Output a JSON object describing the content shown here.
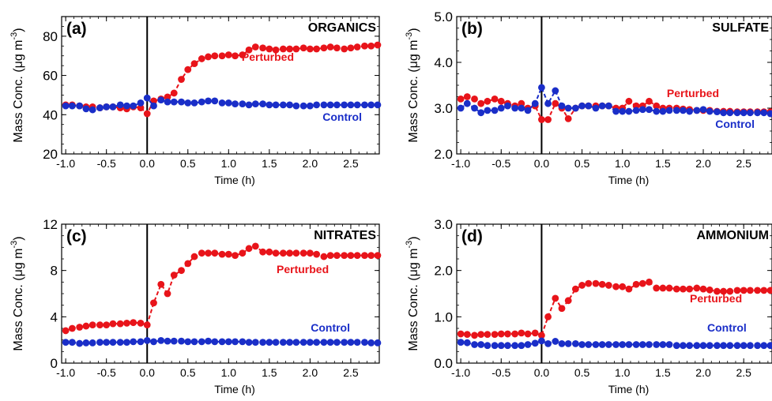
{
  "chart_data": [
    {
      "type": "scatter",
      "panel_label": "(a)",
      "title": "ORGANICS",
      "xlabel": "Time (h)",
      "ylabel": "Mass Conc. (μg m",
      "ylabel_exp": "-3",
      "ylabel_close": ")",
      "xlim": [
        -1.05,
        2.85
      ],
      "ylim": [
        20,
        90
      ],
      "xticks": [
        -1.0,
        -0.5,
        0.0,
        0.5,
        1.0,
        1.5,
        2.0,
        2.5
      ],
      "xtick_labels": [
        "-1.0",
        "-0.5",
        "0.0",
        "0.5",
        "1.0",
        "1.5",
        "2.0",
        "2.5"
      ],
      "yticks": [
        20,
        40,
        60,
        80
      ],
      "ytick_labels": [
        "20",
        "40",
        "60",
        "80"
      ],
      "event_line_x": 0.0,
      "series": [
        {
          "name": "Perturbed",
          "color": "#e8141a",
          "x": [
            -1.0,
            -0.92,
            -0.83,
            -0.75,
            -0.67,
            -0.58,
            -0.5,
            -0.42,
            -0.33,
            -0.25,
            -0.17,
            -0.08,
            0.0,
            0.08,
            0.17,
            0.25,
            0.33,
            0.42,
            0.5,
            0.58,
            0.67,
            0.75,
            0.83,
            0.92,
            1.0,
            1.08,
            1.17,
            1.25,
            1.33,
            1.42,
            1.5,
            1.58,
            1.67,
            1.75,
            1.83,
            1.92,
            2.0,
            2.08,
            2.17,
            2.25,
            2.33,
            2.42,
            2.5,
            2.58,
            2.67,
            2.75,
            2.83
          ],
          "y": [
            45,
            45,
            44.5,
            44,
            44,
            43.5,
            44,
            44,
            43.5,
            43,
            44,
            43.5,
            40.5,
            47,
            48,
            49,
            51,
            58,
            63,
            66,
            68.5,
            69.5,
            70,
            70,
            70.5,
            70,
            70.5,
            73,
            74.5,
            74,
            73.5,
            73,
            73.5,
            73.5,
            73.5,
            74,
            73.5,
            73.5,
            74,
            74.5,
            74,
            73.5,
            74,
            74.5,
            75,
            75,
            75.5
          ]
        },
        {
          "name": "Control",
          "color": "#1a2ec8",
          "x": [
            -1.0,
            -0.92,
            -0.83,
            -0.75,
            -0.67,
            -0.58,
            -0.5,
            -0.42,
            -0.33,
            -0.25,
            -0.17,
            -0.08,
            0.0,
            0.08,
            0.17,
            0.25,
            0.33,
            0.42,
            0.5,
            0.58,
            0.67,
            0.75,
            0.83,
            0.92,
            1.0,
            1.08,
            1.17,
            1.25,
            1.33,
            1.42,
            1.5,
            1.58,
            1.67,
            1.75,
            1.83,
            1.92,
            2.0,
            2.08,
            2.17,
            2.25,
            2.33,
            2.42,
            2.5,
            2.58,
            2.67,
            2.75,
            2.83
          ],
          "y": [
            44.5,
            44.5,
            44.5,
            43,
            42.5,
            43.5,
            44,
            44,
            45,
            44.5,
            44.5,
            46,
            48.5,
            44.5,
            47.5,
            46.5,
            46.5,
            46.5,
            46,
            46,
            46.5,
            47,
            47,
            46,
            46,
            45.5,
            45.5,
            45,
            45.5,
            45.5,
            45,
            45,
            45,
            45,
            44.5,
            44.5,
            44.5,
            45,
            45,
            45,
            45,
            45,
            45,
            45,
            45,
            45,
            45
          ]
        }
      ],
      "series_labels": [
        "Perturbed",
        "Control"
      ]
    },
    {
      "type": "scatter",
      "panel_label": "(b)",
      "title": "SULFATE",
      "xlabel": "Time (h)",
      "ylabel": "Mass Conc. (μg m",
      "ylabel_exp": "-3",
      "ylabel_close": ")",
      "xlim": [
        -1.05,
        2.85
      ],
      "ylim": [
        2.0,
        5.0
      ],
      "xticks": [
        -1.0,
        -0.5,
        0.0,
        0.5,
        1.0,
        1.5,
        2.0,
        2.5
      ],
      "xtick_labels": [
        "-1.0",
        "-0.5",
        "0.0",
        "0.5",
        "1.0",
        "1.5",
        "2.0",
        "2.5"
      ],
      "yticks": [
        2.0,
        3.0,
        4.0,
        5.0
      ],
      "ytick_labels": [
        "2.0",
        "3.0",
        "4.0",
        "5.0"
      ],
      "event_line_x": 0.0,
      "series": [
        {
          "name": "Perturbed",
          "color": "#e8141a",
          "x": [
            -1.0,
            -0.92,
            -0.83,
            -0.75,
            -0.67,
            -0.58,
            -0.5,
            -0.42,
            -0.33,
            -0.25,
            -0.17,
            -0.08,
            0.0,
            0.08,
            0.17,
            0.25,
            0.33,
            0.42,
            0.5,
            0.58,
            0.67,
            0.75,
            0.83,
            0.92,
            1.0,
            1.08,
            1.17,
            1.25,
            1.33,
            1.42,
            1.5,
            1.58,
            1.67,
            1.75,
            1.83,
            1.92,
            2.0,
            2.08,
            2.17,
            2.25,
            2.33,
            2.42,
            2.5,
            2.58,
            2.67,
            2.75,
            2.83
          ],
          "y": [
            3.2,
            3.25,
            3.2,
            3.1,
            3.15,
            3.2,
            3.15,
            3.1,
            3.05,
            3.1,
            3.0,
            3.05,
            2.75,
            2.75,
            3.1,
            3.0,
            2.77,
            3.0,
            3.05,
            3.05,
            3.05,
            3.05,
            3.05,
            3.0,
            3.0,
            3.15,
            3.05,
            3.05,
            3.15,
            3.05,
            3.0,
            3.0,
            3.0,
            2.98,
            2.97,
            2.95,
            2.95,
            2.95,
            2.93,
            2.93,
            2.93,
            2.92,
            2.92,
            2.92,
            2.92,
            2.92,
            2.92
          ]
        },
        {
          "name": "Control",
          "color": "#1a2ec8",
          "x": [
            -1.0,
            -0.92,
            -0.83,
            -0.75,
            -0.67,
            -0.58,
            -0.5,
            -0.42,
            -0.33,
            -0.25,
            -0.17,
            -0.08,
            0.0,
            0.08,
            0.17,
            0.25,
            0.33,
            0.42,
            0.5,
            0.58,
            0.67,
            0.75,
            0.83,
            0.92,
            1.0,
            1.08,
            1.17,
            1.25,
            1.33,
            1.42,
            1.5,
            1.58,
            1.67,
            1.75,
            1.83,
            1.92,
            2.0,
            2.08,
            2.17,
            2.25,
            2.33,
            2.42,
            2.5,
            2.58,
            2.67,
            2.75,
            2.83
          ],
          "y": [
            3.0,
            3.1,
            3.0,
            2.9,
            2.95,
            2.95,
            3.0,
            3.05,
            3.0,
            3.0,
            2.95,
            3.1,
            3.45,
            3.1,
            3.38,
            3.05,
            3.0,
            3.0,
            3.05,
            3.05,
            3.0,
            3.05,
            3.05,
            2.93,
            2.93,
            2.93,
            2.95,
            2.97,
            2.97,
            2.93,
            2.93,
            2.95,
            2.95,
            2.95,
            2.93,
            2.95,
            2.97,
            2.93,
            2.92,
            2.9,
            2.9,
            2.9,
            2.9,
            2.9,
            2.9,
            2.9,
            2.88
          ]
        }
      ],
      "series_labels": [
        "Perturbed",
        "Control"
      ]
    },
    {
      "type": "scatter",
      "panel_label": "(c)",
      "title": "NITRATES",
      "xlabel": "Time (h)",
      "ylabel": "Mass Conc. (μg m",
      "ylabel_exp": "-3",
      "ylabel_close": ")",
      "xlim": [
        -1.05,
        2.85
      ],
      "ylim": [
        0,
        12
      ],
      "xticks": [
        -1.0,
        -0.5,
        0.0,
        0.5,
        1.0,
        1.5,
        2.0,
        2.5
      ],
      "xtick_labels": [
        "-1.0",
        "-0.5",
        "0.0",
        "0.5",
        "1.0",
        "1.5",
        "2.0",
        "2.5"
      ],
      "yticks": [
        0,
        4,
        8,
        12
      ],
      "ytick_labels": [
        "0",
        "4",
        "8",
        "12"
      ],
      "event_line_x": 0.0,
      "series": [
        {
          "name": "Perturbed",
          "color": "#e8141a",
          "x": [
            -1.0,
            -0.92,
            -0.83,
            -0.75,
            -0.67,
            -0.58,
            -0.5,
            -0.42,
            -0.33,
            -0.25,
            -0.17,
            -0.08,
            0.0,
            0.08,
            0.17,
            0.25,
            0.33,
            0.42,
            0.5,
            0.58,
            0.67,
            0.75,
            0.83,
            0.92,
            1.0,
            1.08,
            1.17,
            1.25,
            1.33,
            1.42,
            1.5,
            1.58,
            1.67,
            1.75,
            1.83,
            1.92,
            2.0,
            2.08,
            2.17,
            2.25,
            2.33,
            2.42,
            2.5,
            2.58,
            2.67,
            2.75,
            2.83
          ],
          "y": [
            2.8,
            3.0,
            3.1,
            3.2,
            3.3,
            3.3,
            3.3,
            3.4,
            3.4,
            3.45,
            3.5,
            3.45,
            3.3,
            5.2,
            6.8,
            6.0,
            7.6,
            8.0,
            8.6,
            9.2,
            9.5,
            9.5,
            9.5,
            9.4,
            9.4,
            9.3,
            9.5,
            9.9,
            10.1,
            9.6,
            9.6,
            9.5,
            9.5,
            9.5,
            9.5,
            9.5,
            9.5,
            9.4,
            9.2,
            9.3,
            9.3,
            9.3,
            9.3,
            9.3,
            9.3,
            9.3,
            9.3
          ]
        },
        {
          "name": "Control",
          "color": "#1a2ec8",
          "x": [
            -1.0,
            -0.92,
            -0.83,
            -0.75,
            -0.67,
            -0.58,
            -0.5,
            -0.42,
            -0.33,
            -0.25,
            -0.17,
            -0.08,
            0.0,
            0.08,
            0.17,
            0.25,
            0.33,
            0.42,
            0.5,
            0.58,
            0.67,
            0.75,
            0.83,
            0.92,
            1.0,
            1.08,
            1.17,
            1.25,
            1.33,
            1.42,
            1.5,
            1.58,
            1.67,
            1.75,
            1.83,
            1.92,
            2.0,
            2.08,
            2.17,
            2.25,
            2.33,
            2.42,
            2.5,
            2.58,
            2.67,
            2.75,
            2.83
          ],
          "y": [
            1.8,
            1.8,
            1.7,
            1.75,
            1.75,
            1.8,
            1.8,
            1.8,
            1.8,
            1.8,
            1.85,
            1.85,
            1.95,
            1.85,
            1.95,
            1.9,
            1.9,
            1.9,
            1.85,
            1.85,
            1.85,
            1.9,
            1.85,
            1.85,
            1.85,
            1.85,
            1.85,
            1.8,
            1.8,
            1.8,
            1.8,
            1.8,
            1.8,
            1.8,
            1.8,
            1.8,
            1.8,
            1.8,
            1.8,
            1.8,
            1.8,
            1.8,
            1.8,
            1.8,
            1.8,
            1.75,
            1.75
          ]
        }
      ],
      "series_labels": [
        "Perturbed",
        "Control"
      ]
    },
    {
      "type": "scatter",
      "panel_label": "(d)",
      "title": "AMMONIUM",
      "xlabel": "Time (h)",
      "ylabel": "Mass Conc. (μg m",
      "ylabel_exp": "-3",
      "ylabel_close": ")",
      "xlim": [
        -1.05,
        2.85
      ],
      "ylim": [
        0.0,
        3.0
      ],
      "xticks": [
        -1.0,
        -0.5,
        0.0,
        0.5,
        1.0,
        1.5,
        2.0,
        2.5
      ],
      "xtick_labels": [
        "-1.0",
        "-0.5",
        "0.0",
        "0.5",
        "1.0",
        "1.5",
        "2.0",
        "2.5"
      ],
      "yticks": [
        0.0,
        1.0,
        2.0,
        3.0
      ],
      "ytick_labels": [
        "0.0",
        "1.0",
        "2.0",
        "3.0"
      ],
      "event_line_x": 0.0,
      "series": [
        {
          "name": "Perturbed",
          "color": "#e8141a",
          "x": [
            -1.0,
            -0.92,
            -0.83,
            -0.75,
            -0.67,
            -0.58,
            -0.5,
            -0.42,
            -0.33,
            -0.25,
            -0.17,
            -0.08,
            0.0,
            0.08,
            0.17,
            0.25,
            0.33,
            0.42,
            0.5,
            0.58,
            0.67,
            0.75,
            0.83,
            0.92,
            1.0,
            1.08,
            1.17,
            1.25,
            1.33,
            1.42,
            1.5,
            1.58,
            1.67,
            1.75,
            1.83,
            1.92,
            2.0,
            2.08,
            2.17,
            2.25,
            2.33,
            2.42,
            2.5,
            2.58,
            2.67,
            2.75,
            2.83
          ],
          "y": [
            0.63,
            0.62,
            0.6,
            0.62,
            0.62,
            0.62,
            0.63,
            0.63,
            0.63,
            0.65,
            0.63,
            0.65,
            0.6,
            1.0,
            1.4,
            1.18,
            1.35,
            1.6,
            1.68,
            1.72,
            1.72,
            1.7,
            1.68,
            1.65,
            1.65,
            1.6,
            1.7,
            1.72,
            1.75,
            1.62,
            1.62,
            1.62,
            1.6,
            1.6,
            1.6,
            1.62,
            1.6,
            1.58,
            1.55,
            1.55,
            1.55,
            1.57,
            1.57,
            1.57,
            1.57,
            1.57,
            1.57
          ]
        },
        {
          "name": "Control",
          "color": "#1a2ec8",
          "x": [
            -1.0,
            -0.92,
            -0.83,
            -0.75,
            -0.67,
            -0.58,
            -0.5,
            -0.42,
            -0.33,
            -0.25,
            -0.17,
            -0.08,
            0.0,
            0.08,
            0.17,
            0.25,
            0.33,
            0.42,
            0.5,
            0.58,
            0.67,
            0.75,
            0.83,
            0.92,
            1.0,
            1.08,
            1.17,
            1.25,
            1.33,
            1.42,
            1.5,
            1.58,
            1.67,
            1.75,
            1.83,
            1.92,
            2.0,
            2.08,
            2.17,
            2.25,
            2.33,
            2.42,
            2.5,
            2.58,
            2.67,
            2.75,
            2.83
          ],
          "y": [
            0.45,
            0.44,
            0.4,
            0.4,
            0.38,
            0.38,
            0.38,
            0.38,
            0.38,
            0.38,
            0.4,
            0.43,
            0.48,
            0.42,
            0.47,
            0.42,
            0.42,
            0.42,
            0.4,
            0.4,
            0.4,
            0.4,
            0.4,
            0.4,
            0.4,
            0.4,
            0.4,
            0.4,
            0.4,
            0.4,
            0.4,
            0.4,
            0.38,
            0.38,
            0.38,
            0.38,
            0.38,
            0.38,
            0.38,
            0.38,
            0.38,
            0.38,
            0.38,
            0.38,
            0.38,
            0.38,
            0.38
          ]
        }
      ],
      "series_labels": [
        "Perturbed",
        "Control"
      ]
    }
  ]
}
